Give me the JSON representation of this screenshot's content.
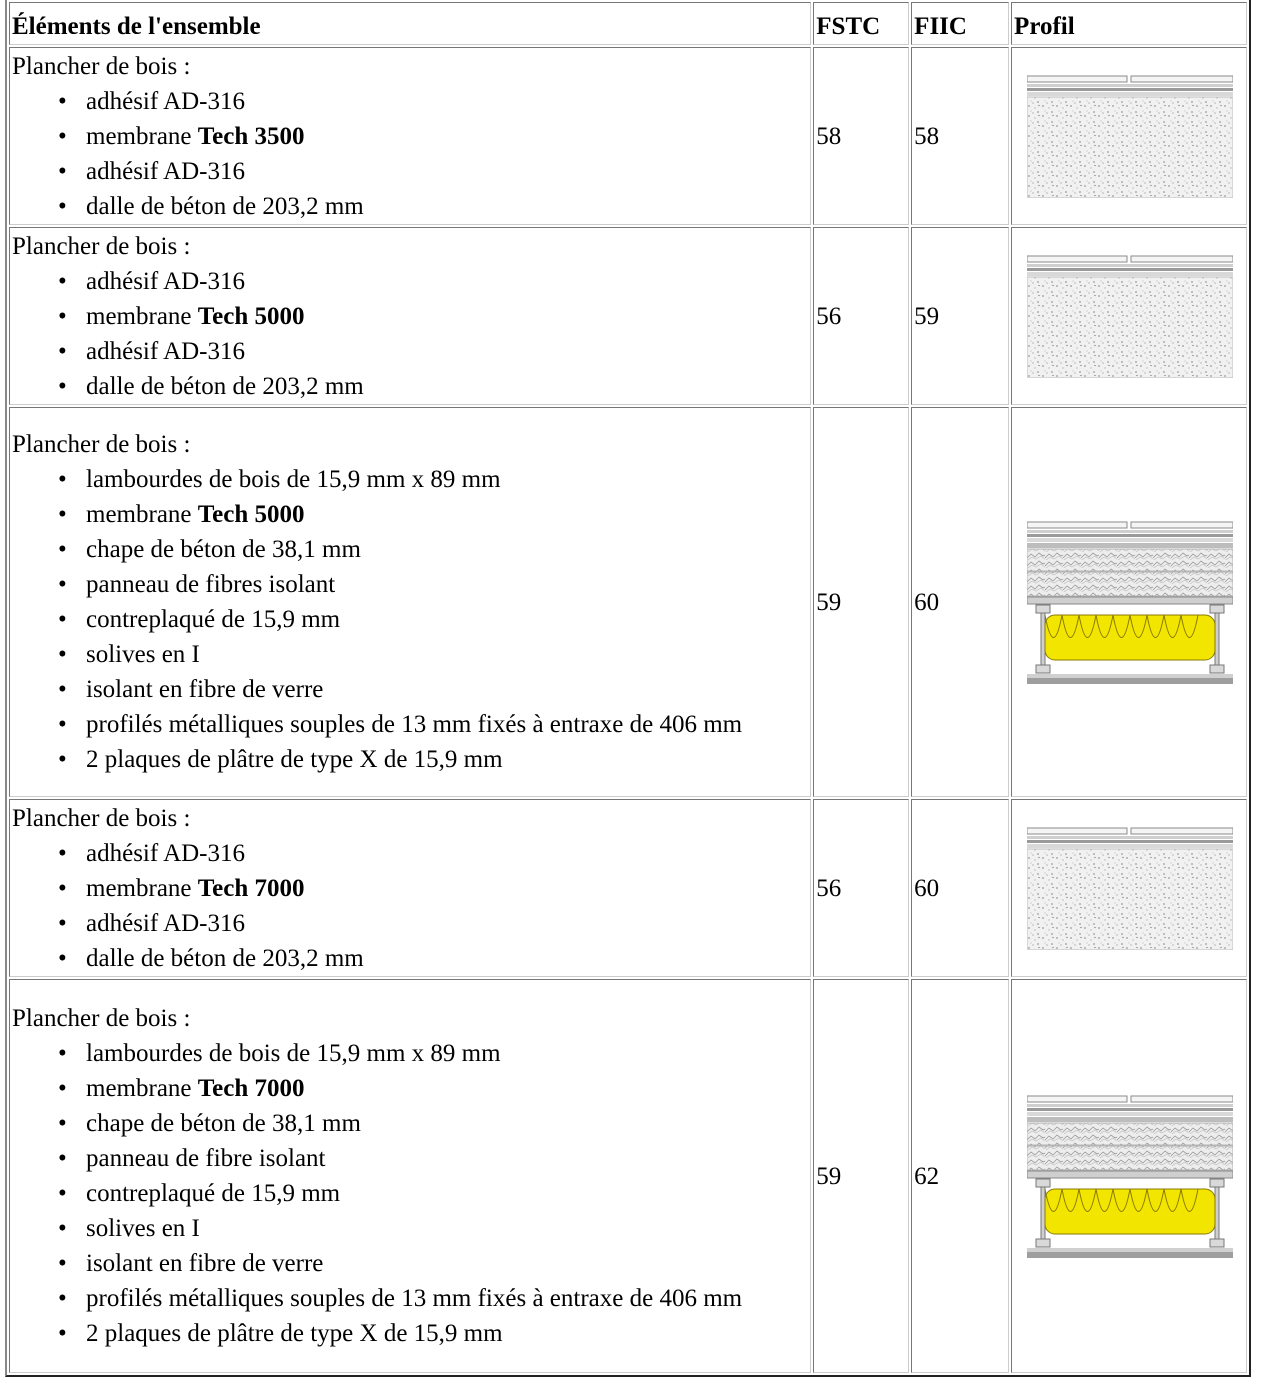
{
  "table": {
    "headers": {
      "elements": "Éléments de l'ensemble",
      "fstc": "FSTC",
      "fiic": "FIIC",
      "profile": "Profil"
    },
    "rows": [
      {
        "intro": "Plancher de bois :",
        "items": [
          {
            "before": "adhésif AD-316",
            "bold": "",
            "after": ""
          },
          {
            "before": "membrane ",
            "bold": "Tech 3500",
            "after": ""
          },
          {
            "before": "adhésif AD-316",
            "bold": "",
            "after": ""
          },
          {
            "before": "dalle de béton de 203,2 mm",
            "bold": "",
            "after": ""
          }
        ],
        "fstc": "58",
        "fiic": "58",
        "profile_icon": "concrete-slab-profile-icon"
      },
      {
        "intro": "Plancher de bois :",
        "items": [
          {
            "before": "adhésif AD-316",
            "bold": "",
            "after": ""
          },
          {
            "before": "membrane ",
            "bold": "Tech 5000",
            "after": ""
          },
          {
            "before": "adhésif AD-316",
            "bold": "",
            "after": ""
          },
          {
            "before": "dalle de béton de 203,2 mm",
            "bold": "",
            "after": ""
          }
        ],
        "fstc": "56",
        "fiic": "59",
        "profile_icon": "concrete-slab-profile-icon"
      },
      {
        "intro": "Plancher de bois :",
        "items": [
          {
            "before": "lambourdes de bois de 15,9 mm x 89 mm",
            "bold": "",
            "after": ""
          },
          {
            "before": "membrane ",
            "bold": "Tech 5000",
            "after": ""
          },
          {
            "before": "chape de béton de 38,1 mm",
            "bold": "",
            "after": ""
          },
          {
            "before": "panneau de fibres isolant",
            "bold": "",
            "after": ""
          },
          {
            "before": "contreplaqué de 15,9 mm",
            "bold": "",
            "after": ""
          },
          {
            "before": "solives en I",
            "bold": "",
            "after": ""
          },
          {
            "before": "isolant en fibre de verre",
            "bold": "",
            "after": ""
          },
          {
            "before": "profilés métalliques souples de 13 mm fixés à entraxe de 406 mm",
            "bold": "",
            "after": ""
          },
          {
            "before": "2 plaques de plâtre de type X de 15,9 mm",
            "bold": "",
            "after": ""
          }
        ],
        "fstc": "59",
        "fiic": "60",
        "profile_icon": "joist-assembly-profile-icon"
      },
      {
        "intro": "Plancher de bois :",
        "items": [
          {
            "before": "adhésif AD-316",
            "bold": "",
            "after": ""
          },
          {
            "before": "membrane ",
            "bold": "Tech 7000",
            "after": ""
          },
          {
            "before": "adhésif AD-316",
            "bold": "",
            "after": ""
          },
          {
            "before": "dalle de béton de 203,2 mm",
            "bold": "",
            "after": ""
          }
        ],
        "fstc": "56",
        "fiic": "60",
        "profile_icon": "concrete-slab-profile-icon"
      },
      {
        "intro": "Plancher de bois :",
        "items": [
          {
            "before": "lambourdes de bois de 15,9 mm x 89 mm",
            "bold": "",
            "after": ""
          },
          {
            "before": "membrane ",
            "bold": "Tech 7000",
            "after": ""
          },
          {
            "before": "chape de béton de 38,1 mm",
            "bold": "",
            "after": ""
          },
          {
            "before": "panneau de fibre isolant",
            "bold": "",
            "after": ""
          },
          {
            "before": "contreplaqué de 15,9 mm",
            "bold": "",
            "after": ""
          },
          {
            "before": "solives en I",
            "bold": "",
            "after": ""
          },
          {
            "before": "isolant en fibre de verre",
            "bold": "",
            "after": ""
          },
          {
            "before": "profilés métalliques souples de 13 mm fixés à entraxe de 406 mm",
            "bold": "",
            "after": ""
          },
          {
            "before": "2 plaques de plâtre de type X de 15,9 mm",
            "bold": "",
            "after": ""
          }
        ],
        "fstc": "59",
        "fiic": "62",
        "profile_icon": "joist-assembly-profile-icon"
      }
    ]
  },
  "colors": {
    "insulation": "#f2e600",
    "concrete": "#e6e6e6",
    "steel": "#b0b0b0"
  }
}
